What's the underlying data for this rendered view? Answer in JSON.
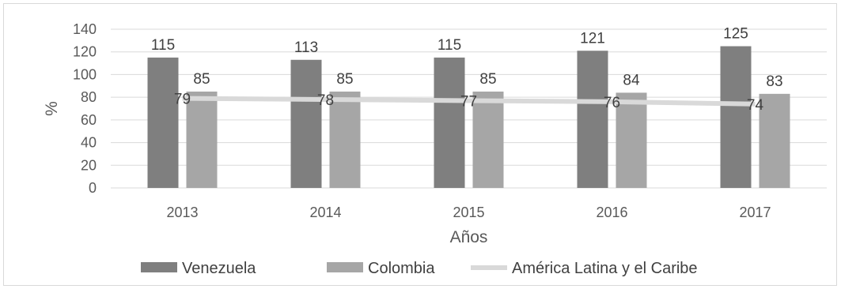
{
  "chart_data": {
    "type": "bar",
    "categories": [
      "2013",
      "2014",
      "2015",
      "2016",
      "2017"
    ],
    "xlabel": "Años",
    "ylabel": "%",
    "ylim": [
      0,
      140
    ],
    "yticks": [
      0,
      20,
      40,
      60,
      80,
      100,
      120,
      140
    ],
    "grid": true,
    "legend_position": "bottom",
    "series": [
      {
        "name": "Venezuela",
        "kind": "bar",
        "color": "#7f7f7f",
        "values": [
          115,
          113,
          115,
          121,
          125
        ]
      },
      {
        "name": "Colombia",
        "kind": "bar",
        "color": "#a6a6a6",
        "values": [
          85,
          85,
          85,
          84,
          83
        ]
      },
      {
        "name": "América Latina y el Caribe",
        "kind": "line",
        "color": "#d9d9d9",
        "values": [
          79,
          78,
          77,
          76,
          74
        ]
      }
    ]
  }
}
